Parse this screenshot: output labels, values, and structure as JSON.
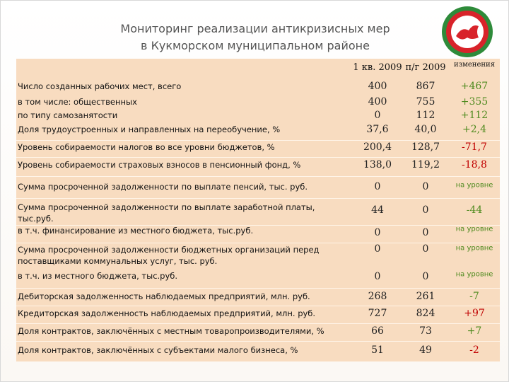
{
  "header": {
    "title": [
      "Мониторинг реализации антикризисных мер",
      "в Кукморском муниципальном районе"
    ]
  },
  "table": {
    "columns": [
      "1 кв. 2009",
      "п/г 2009",
      "изменения"
    ],
    "rows": [
      {
        "label": "Число созданных рабочих мест, всего",
        "values": [
          "400",
          "867"
        ],
        "change": "+467",
        "change_color": "#4e8a1e"
      },
      {
        "label": "в том числе: общественных",
        "values": [
          "400",
          "755"
        ],
        "change": "+355",
        "change_color": "#4e8a1e"
      },
      {
        "label": "по типу самозанятости",
        "values": [
          "0",
          "112"
        ],
        "change": "+112",
        "change_color": "#4e8a1e"
      },
      {
        "label": "Доля трудоустроенных и направленных на переобучение, %",
        "values": [
          "37,6",
          "40,0"
        ],
        "change": "+2,4",
        "change_color": "#4e8a1e"
      },
      {
        "label": "Уровень собираемости налогов во все уровни бюджетов, %",
        "values": [
          "200,4",
          "128,7"
        ],
        "change": "-71,7",
        "change_color": "#c00000"
      },
      {
        "label": "Уровень собираемости страховых взносов в пенсионный фонд, %",
        "values": [
          "138,0",
          "119,2"
        ],
        "change": "-18,8",
        "change_color": "#c00000"
      },
      {
        "label": "Сумма просроченной задолженности по выплате пенсий, тыс. руб.",
        "values": [
          "0",
          "0"
        ],
        "change": "на уровне",
        "change_color": "#4e8a1e"
      },
      {
        "label": "Сумма просроченной задолженности по выплате заработной платы, тыс.руб.",
        "values": [
          "44",
          "0"
        ],
        "change": "-44",
        "change_color": "#4e8a1e"
      },
      {
        "label": "в т.ч. финансирование из местного бюджета, тыс.руб.",
        "values": [
          "0",
          "0"
        ],
        "change": "на уровне",
        "change_color": "#4e8a1e"
      },
      {
        "label": "Сумма просроченной задолженности бюджетных организаций перед поставщиками коммунальных услуг, тыс. руб.",
        "values": [
          "0",
          "0"
        ],
        "change": "на уровне",
        "change_color": "#4e8a1e"
      },
      {
        "label": "в т.ч. из местного бюджета, тыс.руб.",
        "values": [
          "0",
          "0"
        ],
        "change": "на уровне",
        "change_color": "#4e8a1e"
      },
      {
        "label": "Дебиторская задолженность наблюдаемых предприятий, млн. руб.",
        "values": [
          "268",
          "261"
        ],
        "change": "-7",
        "change_color": "#4e8a1e"
      },
      {
        "label": "Кредиторская задолженность наблюдаемых предприятий, млн. руб.",
        "values": [
          "727",
          "824"
        ],
        "change": "+97",
        "change_color": "#c00000"
      },
      {
        "label": "Доля контрактов, заключённых с местным товаропроизводителями, %",
        "values": [
          "66",
          "73"
        ],
        "change": "+7",
        "change_color": "#4e8a1e"
      },
      {
        "label": "Доля контрактов, заключённых с субъектами малого бизнеса, %",
        "values": [
          "51",
          "49"
        ],
        "change": "-2",
        "change_color": "#c00000"
      }
    ]
  }
}
